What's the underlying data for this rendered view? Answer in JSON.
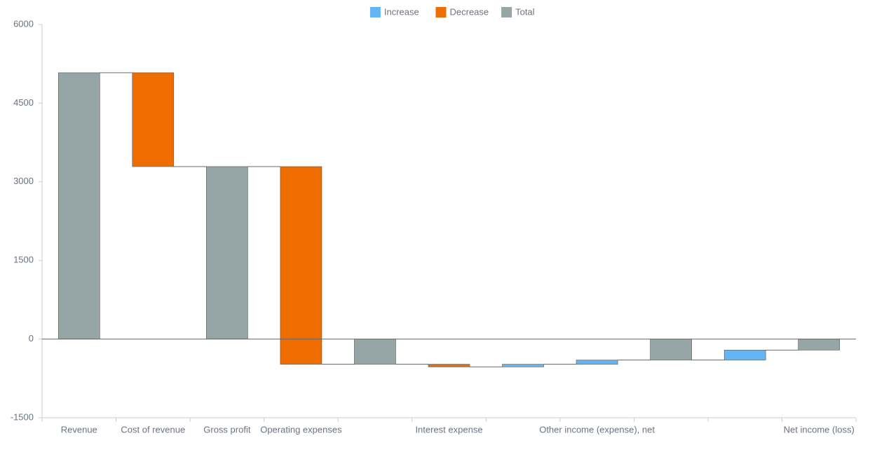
{
  "chart_data": {
    "type": "waterfall",
    "legend": [
      {
        "name": "Increase",
        "color": "#64b5f6"
      },
      {
        "name": "Decrease",
        "color": "#ef6c00"
      },
      {
        "name": "Total",
        "color": "#96a6a6"
      }
    ],
    "categories": [
      "Revenue",
      "Cost of revenue",
      "Gross profit",
      "Operating expenses",
      null,
      "Interest expense",
      null,
      "Other income (expense), net",
      null,
      null,
      "Net income (loss)"
    ],
    "values": [
      5080,
      -1790,
      3290,
      -3770,
      -480,
      -50,
      50,
      80,
      -400,
      190,
      -210
    ],
    "kinds": [
      2,
      1,
      2,
      1,
      2,
      1,
      0,
      0,
      2,
      0,
      2
    ],
    "ylim": [
      -1500,
      6000
    ],
    "yticks": [
      -1500,
      0,
      1500,
      3000,
      4500,
      6000
    ]
  }
}
